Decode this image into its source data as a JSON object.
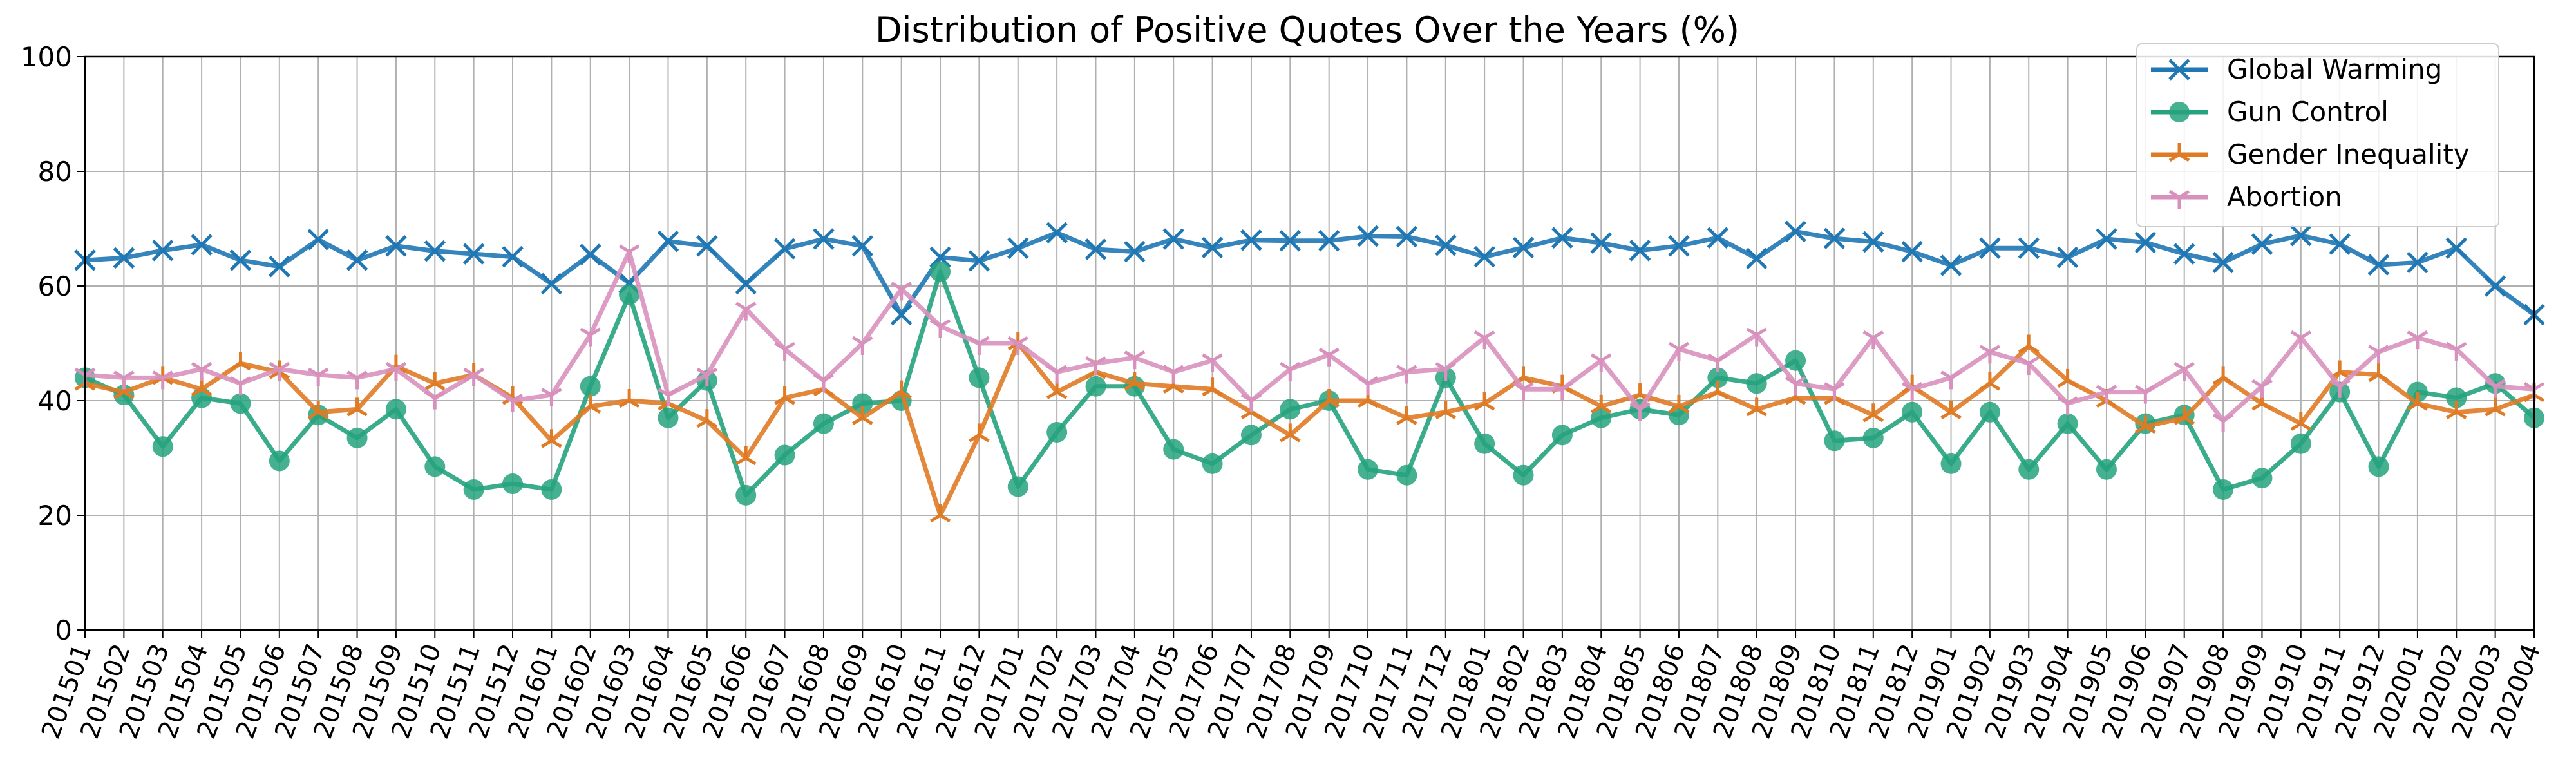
{
  "chart_data": {
    "type": "line",
    "title": "Distribution of Positive Quotes Over the Years (%)",
    "xlabel": "",
    "ylabel": "",
    "ylim": [
      0,
      100
    ],
    "yticks": [
      0,
      20,
      40,
      60,
      80,
      100
    ],
    "grid": true,
    "legend_position": "top-right",
    "categories": [
      "201501",
      "201502",
      "201503",
      "201504",
      "201505",
      "201506",
      "201507",
      "201508",
      "201509",
      "201510",
      "201511",
      "201512",
      "201601",
      "201602",
      "201603",
      "201604",
      "201605",
      "201606",
      "201607",
      "201608",
      "201609",
      "201610",
      "201611",
      "201612",
      "201701",
      "201702",
      "201703",
      "201704",
      "201705",
      "201706",
      "201707",
      "201708",
      "201709",
      "201710",
      "201711",
      "201712",
      "201801",
      "201802",
      "201803",
      "201804",
      "201805",
      "201806",
      "201807",
      "201808",
      "201809",
      "201810",
      "201811",
      "201812",
      "201901",
      "201902",
      "201903",
      "201904",
      "201905",
      "201906",
      "201907",
      "201908",
      "201909",
      "201910",
      "201911",
      "201912",
      "202001",
      "202002",
      "202003",
      "202004"
    ],
    "series": [
      {
        "name": "Global Warming",
        "color": "#1f77b4",
        "marker": "x",
        "values": [
          64.5,
          64.9,
          66.2,
          67.2,
          64.5,
          63.4,
          68.1,
          64.5,
          67.0,
          66.1,
          65.6,
          65.1,
          60.4,
          65.5,
          60.5,
          67.8,
          67.0,
          60.4,
          66.5,
          68.2,
          67.0,
          55.0,
          65.0,
          64.4,
          66.6,
          69.3,
          66.4,
          66.0,
          68.2,
          66.7,
          68.0,
          67.9,
          67.9,
          68.7,
          68.6,
          67.1,
          65.1,
          66.7,
          68.4,
          67.5,
          66.2,
          67.0,
          68.4,
          64.8,
          69.5,
          68.3,
          67.7,
          66.0,
          63.6,
          66.6,
          66.6,
          65.0,
          68.2,
          67.6,
          65.6,
          64.1,
          67.3,
          68.8,
          67.3,
          63.7,
          64.1,
          66.6,
          60.0,
          55.0
        ]
      },
      {
        "name": "Gun Control",
        "color": "#26a37e",
        "marker": "o",
        "values": [
          44.0,
          41.0,
          32.0,
          40.5,
          39.5,
          29.5,
          37.5,
          33.5,
          38.5,
          28.5,
          24.5,
          25.5,
          24.5,
          42.5,
          58.5,
          37.0,
          43.5,
          23.5,
          30.5,
          36.0,
          39.5,
          40.0,
          62.5,
          44.0,
          25.0,
          34.5,
          42.5,
          42.5,
          31.5,
          29.0,
          34.0,
          38.5,
          40.0,
          28.0,
          27.0,
          44.0,
          32.5,
          27.0,
          34.0,
          37.0,
          38.5,
          37.5,
          44.0,
          43.0,
          47.0,
          33.0,
          33.5,
          38.0,
          29.0,
          38.0,
          28.0,
          36.0,
          28.0,
          36.0,
          37.5,
          24.5,
          26.5,
          32.5,
          41.5,
          28.5,
          41.5,
          40.5,
          43.0,
          37.0
        ]
      },
      {
        "name": "Gender Inequality",
        "color": "#e07b25",
        "marker": "tri",
        "values": [
          43.0,
          41.5,
          44.0,
          42.0,
          46.5,
          45.0,
          38.0,
          38.5,
          46.0,
          43.0,
          44.5,
          40.5,
          33.0,
          39.0,
          40.0,
          39.5,
          36.5,
          30.0,
          40.5,
          42.0,
          37.0,
          41.5,
          20.0,
          34.0,
          50.0,
          41.5,
          45.0,
          43.0,
          42.5,
          42.0,
          38.0,
          34.0,
          40.0,
          40.0,
          37.0,
          38.0,
          39.5,
          44.0,
          42.5,
          39.0,
          41.0,
          39.0,
          41.5,
          38.5,
          40.5,
          40.5,
          37.5,
          42.5,
          38.0,
          43.0,
          49.5,
          43.5,
          40.0,
          35.5,
          37.0,
          44.0,
          39.5,
          36.0,
          45.0,
          44.5,
          39.5,
          38.0,
          38.5,
          41.0
        ]
      },
      {
        "name": "Abortion",
        "color": "#d891bd",
        "marker": "tri_down",
        "values": [
          44.5,
          44.0,
          44.0,
          45.5,
          43.0,
          45.5,
          44.5,
          44.0,
          45.5,
          40.5,
          44.5,
          40.0,
          41.0,
          51.5,
          66.0,
          41.0,
          44.5,
          56.0,
          49.0,
          43.5,
          50.0,
          59.5,
          53.0,
          50.0,
          50.0,
          45.0,
          46.5,
          47.5,
          45.0,
          47.0,
          40.0,
          45.5,
          48.0,
          43.0,
          45.0,
          45.5,
          51.0,
          42.0,
          42.0,
          47.0,
          38.5,
          49.0,
          47.0,
          51.5,
          43.0,
          42.0,
          51.0,
          42.0,
          44.0,
          48.5,
          46.5,
          39.5,
          41.5,
          41.5,
          45.5,
          36.5,
          42.5,
          51.0,
          42.5,
          48.5,
          51.0,
          49.0,
          42.5,
          42.0
        ]
      }
    ]
  }
}
